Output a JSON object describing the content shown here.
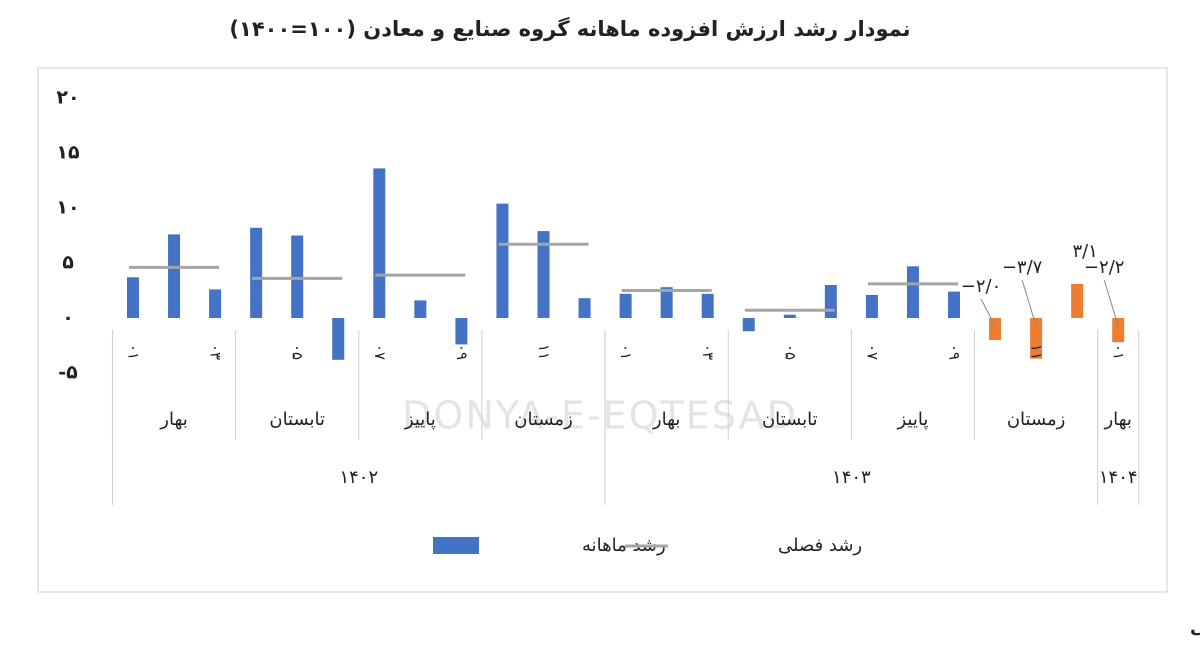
{
  "chart_data": {
    "type": "bar",
    "title": "نمودار رشد ارزش افزوده ماهانه گروه صنایع و معادن (۱۰۰=۱۴۰۰)",
    "categories": [
      "۰۱",
      null,
      "۰۳",
      null,
      "۰۵",
      null,
      "۰۷",
      null,
      "۰۹",
      null,
      "۱۱",
      null,
      "۰۱",
      null,
      "۰۳",
      null,
      "۰۵",
      null,
      "۰۷",
      null,
      "۰۹",
      null,
      "۱۱",
      null,
      "۰۱"
    ],
    "series": [
      {
        "name": "رشد ماهانه",
        "color": "#4472c4",
        "colors": [
          "#4472c4",
          "#4472c4",
          "#4472c4",
          "#4472c4",
          "#4472c4",
          "#4472c4",
          "#4472c4",
          "#4472c4",
          "#4472c4",
          "#4472c4",
          "#4472c4",
          "#4472c4",
          "#4472c4",
          "#4472c4",
          "#4472c4",
          "#4472c4",
          "#4472c4",
          "#4472c4",
          "#4472c4",
          "#4472c4",
          "#4472c4",
          "#ed7d31",
          "#ed7d31",
          "#ed7d31",
          "#ed7d31"
        ],
        "values": [
          3.7,
          7.6,
          2.6,
          8.2,
          7.5,
          -3.8,
          13.6,
          1.6,
          -2.4,
          10.4,
          7.9,
          1.8,
          2.2,
          2.8,
          2.2,
          -1.2,
          0.3,
          3.0,
          2.1,
          4.7,
          2.4,
          -2.0,
          -3.7,
          3.1,
          -2.2
        ],
        "value_labels": [
          null,
          null,
          null,
          null,
          null,
          null,
          null,
          null,
          null,
          null,
          null,
          null,
          null,
          null,
          null,
          null,
          null,
          null,
          null,
          null,
          null,
          "−۲/۰",
          "−۳/۷",
          "۳/۱",
          "−۲/۲"
        ]
      },
      {
        "name": "رشد فصلی",
        "color": "#a5a5a5",
        "type": "season_line"
      }
    ],
    "seasons": [
      "بهار",
      "تابستان",
      "پاییز",
      "زمستان",
      "بهار",
      "تابستان",
      "پاییز",
      "زمستان",
      "بهار"
    ],
    "season_values": [
      4.6,
      3.6,
      3.9,
      6.7,
      2.5,
      0.7,
      3.1,
      null,
      null
    ],
    "years": [
      "۱۴۰۲",
      "۱۴۰۳",
      "۱۴۰۴"
    ],
    "ylim": [
      -5,
      20
    ],
    "yticks": [
      {
        "value": -5,
        "label": "-۵"
      },
      {
        "value": 0,
        "label": "۰"
      },
      {
        "value": 5,
        "label": "۵"
      },
      {
        "value": 10,
        "label": "۱۰"
      },
      {
        "value": 15,
        "label": "۱۵"
      },
      {
        "value": 20,
        "label": "۲۰"
      }
    ],
    "grid": false,
    "watermark": "DONYA-E-EQTESAD",
    "source": "منبع:مرکز پژوهش‌های مجلس شورای اسلامی"
  }
}
